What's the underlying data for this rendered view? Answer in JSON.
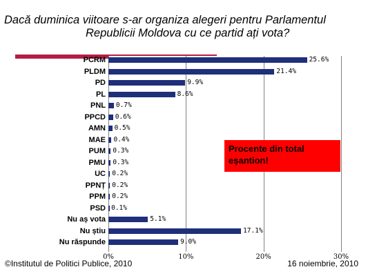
{
  "title_line1": "Dacă duminica viitoare s-ar organiza alegeri pentru Parlamentul",
  "title_line2": "Republicii Moldova cu ce partid ați vota?",
  "callout": "Procente din total eșantion!",
  "footer_left": "©Institutul de Politici Publice, 2010",
  "footer_right": "16 noiembrie, 2010",
  "colors": {
    "bar": "#1f2f7a",
    "accent": "#b21e45",
    "callout": "#ff0000"
  },
  "chart_data": {
    "type": "bar",
    "orientation": "horizontal",
    "categories": [
      "PCRM",
      "PLDM",
      "PD",
      "PL",
      "PNL",
      "PPCD",
      "AMN",
      "MAE",
      "PUM",
      "PMU",
      "UC",
      "PPNȚ",
      "PPM",
      "PSD",
      "Nu aș vota",
      "Nu știu",
      "Nu răspunde"
    ],
    "values": [
      25.6,
      21.4,
      9.9,
      8.6,
      0.7,
      0.6,
      0.5,
      0.4,
      0.3,
      0.3,
      0.2,
      0.2,
      0.2,
      0.1,
      5.1,
      17.1,
      9.0
    ],
    "value_labels": [
      "25.6%",
      "21.4%",
      "9.9%",
      "8.6%",
      "0.7%",
      "0.6%",
      "0.5%",
      "0.4%",
      "0.3%",
      "0.3%",
      "0.2%",
      "0.2%",
      "0.2%",
      "0.1%",
      "5.1%",
      "17.1%",
      "9.0%"
    ],
    "tick_labels": [
      "0%",
      "10%",
      "20%",
      "30%"
    ],
    "xlim": [
      0,
      30
    ],
    "grid": true
  }
}
